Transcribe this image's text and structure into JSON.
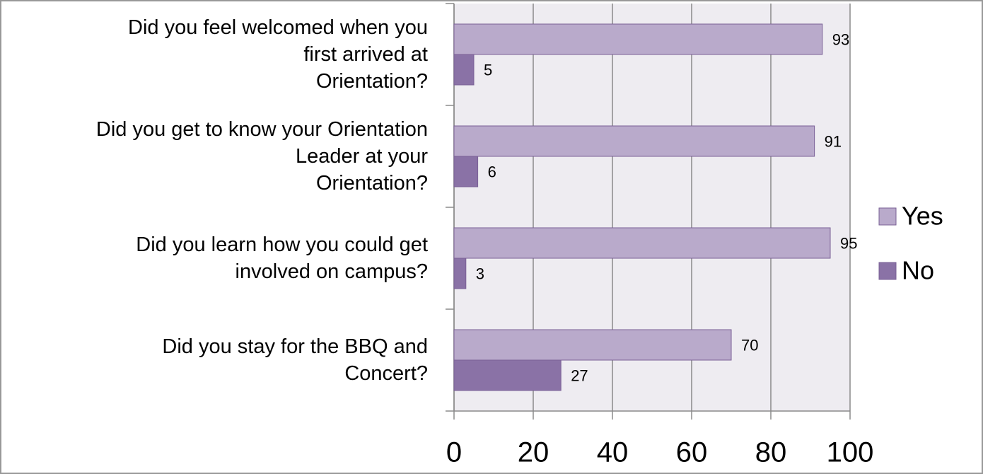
{
  "chart_data": {
    "type": "bar",
    "orientation": "horizontal",
    "categories": [
      "Did you feel welcomed when you\nfirst arrived at\nOrientation?",
      "Did you get to know your Orientation\nLeader at your\nOrientation?",
      "Did you learn how you could get\ninvolved on campus?",
      "Did you stay for the BBQ and\nConcert?"
    ],
    "series": [
      {
        "name": "Yes",
        "color": "#b9aacb",
        "values": [
          93,
          91,
          95,
          70
        ]
      },
      {
        "name": "No",
        "color": "#8a72a6",
        "values": [
          5,
          6,
          3,
          27
        ]
      }
    ],
    "xlim": [
      0,
      100
    ],
    "xticks": [
      0,
      20,
      40,
      60,
      80,
      100
    ],
    "grid": true,
    "legend": "right"
  }
}
